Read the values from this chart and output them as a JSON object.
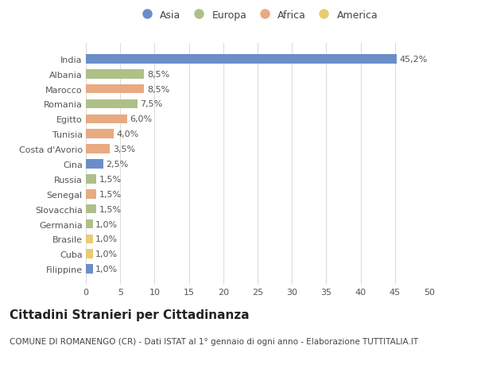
{
  "countries": [
    "India",
    "Albania",
    "Marocco",
    "Romania",
    "Egitto",
    "Tunisia",
    "Costa d'Avorio",
    "Cina",
    "Russia",
    "Senegal",
    "Slovacchia",
    "Germania",
    "Brasile",
    "Cuba",
    "Filippine"
  ],
  "values": [
    45.2,
    8.5,
    8.5,
    7.5,
    6.0,
    4.0,
    3.5,
    2.5,
    1.5,
    1.5,
    1.5,
    1.0,
    1.0,
    1.0,
    1.0
  ],
  "labels": [
    "45,2%",
    "8,5%",
    "8,5%",
    "7,5%",
    "6,0%",
    "4,0%",
    "3,5%",
    "2,5%",
    "1,5%",
    "1,5%",
    "1,5%",
    "1,0%",
    "1,0%",
    "1,0%",
    "1,0%"
  ],
  "continents": [
    "Asia",
    "Europa",
    "Africa",
    "Europa",
    "Africa",
    "Africa",
    "Africa",
    "Asia",
    "Europa",
    "Africa",
    "Europa",
    "Europa",
    "America",
    "America",
    "Asia"
  ],
  "continent_colors": {
    "Asia": "#6b8ec8",
    "Europa": "#aec088",
    "Africa": "#e8aa80",
    "America": "#e8cc70"
  },
  "legend_order": [
    "Asia",
    "Europa",
    "Africa",
    "America"
  ],
  "title": "Cittadini Stranieri per Cittadinanza",
  "subtitle": "COMUNE DI ROMANENGO (CR) - Dati ISTAT al 1° gennaio di ogni anno - Elaborazione TUTTITALIA.IT",
  "xlim": [
    0,
    50
  ],
  "xticks": [
    0,
    5,
    10,
    15,
    20,
    25,
    30,
    35,
    40,
    45,
    50
  ],
  "background_color": "#ffffff",
  "grid_color": "#dddddd",
  "bar_height": 0.62,
  "title_fontsize": 11,
  "subtitle_fontsize": 7.5,
  "label_fontsize": 8,
  "tick_fontsize": 8,
  "legend_fontsize": 9
}
